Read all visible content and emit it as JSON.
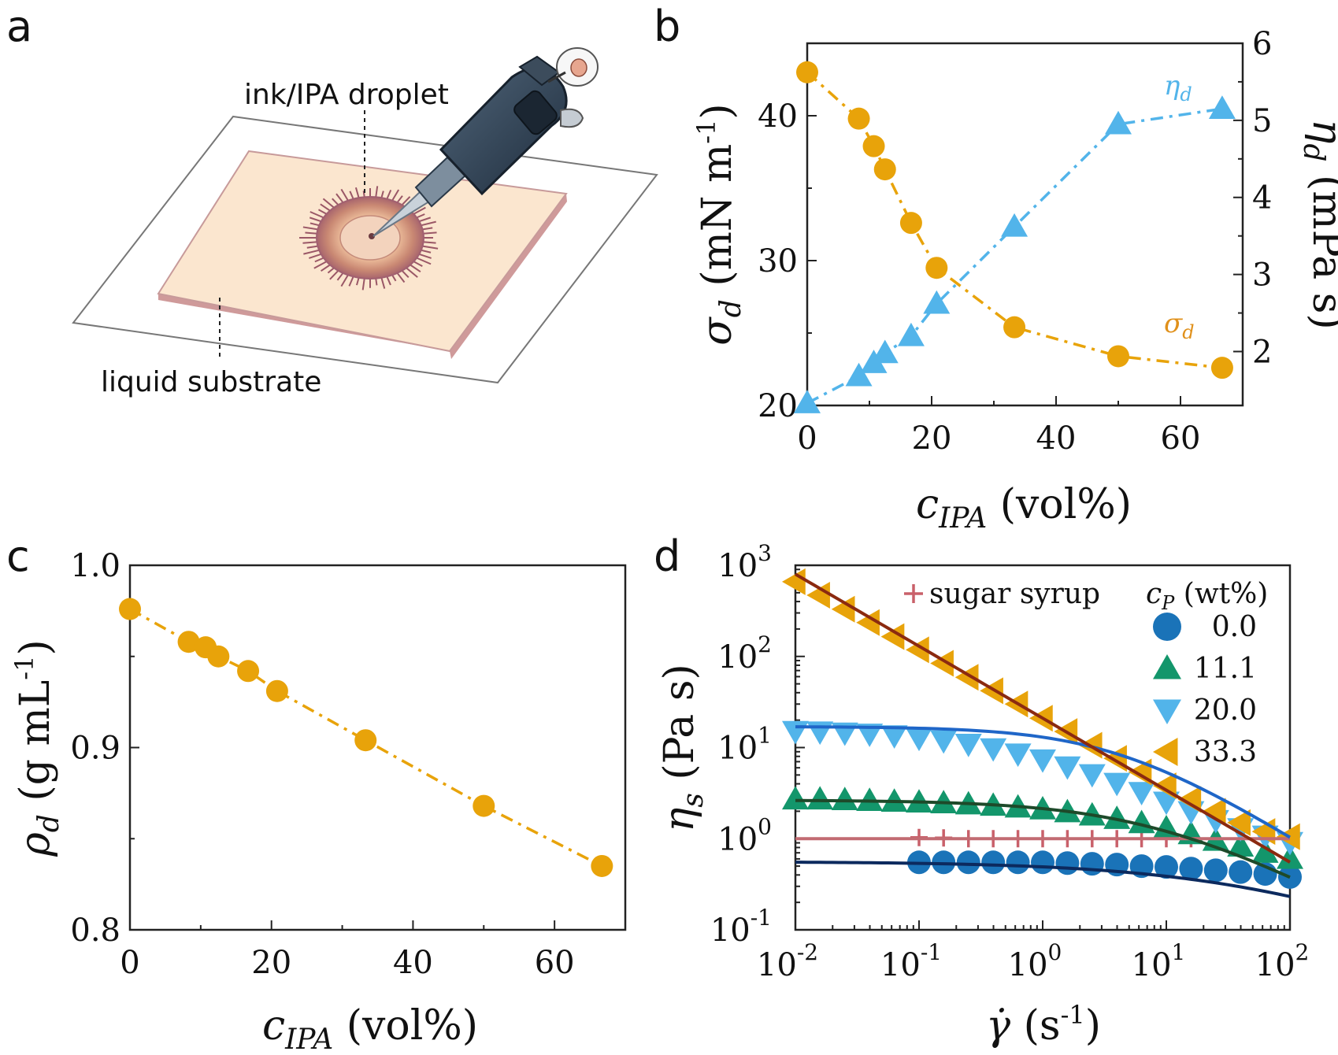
{
  "colors": {
    "orange": "#e8a30a",
    "blue_light": "#52b4ea",
    "blue_dark": "#1a73b8",
    "green": "#13966b",
    "pink": "#c9606a",
    "brown_line": "#8b2a10",
    "blue_line": "#1f66c8",
    "green_line": "#1e4a2a",
    "navy_line": "#0c2a5e",
    "pink_line": "#c26b72"
  },
  "panel_a": {
    "label": "a",
    "droplet_label": "ink/IPA droplet",
    "substrate_label": "liquid substrate"
  },
  "panel_b": {
    "label": "b"
  },
  "panel_c": {
    "label": "c"
  },
  "panel_d": {
    "label": "d"
  },
  "chart_data": [
    {
      "panel": "b",
      "type": "line",
      "xlabel": "c_IPA (vol%)",
      "xlabel_parts": {
        "sym": "c",
        "sub": "IPA",
        "unit": " (vol%)"
      },
      "ylabel_left": "σ_d (mN m-1)",
      "ylabel_left_parts": {
        "sym": "σ",
        "sub": "d",
        "unit": " (mN m",
        "sup": "-1",
        "close": ")"
      },
      "ylabel_right": "η_d (mPa s)",
      "ylabel_right_parts": {
        "sym": "η",
        "sub": "d",
        "unit": " (mPa s)"
      },
      "xlim": [
        0,
        70
      ],
      "ylim_left": [
        20,
        45
      ],
      "ylim_right": [
        1.3,
        6
      ],
      "xticks": [
        0,
        20,
        40,
        60
      ],
      "xtick_labels": [
        "0",
        "20",
        "40",
        "60"
      ],
      "yticks_left": [
        20,
        30,
        40
      ],
      "ytick_left_labels": [
        "20",
        "30",
        "40"
      ],
      "yticks_right": [
        2,
        3,
        4,
        5,
        6
      ],
      "ytick_right_labels": [
        "2",
        "3",
        "4",
        "5",
        "6"
      ],
      "series": [
        {
          "name": "σ_d",
          "label_sym": "σ",
          "label_sub": "d",
          "axis": "left",
          "marker": "circle",
          "x": [
            0,
            8.3,
            10.7,
            12.5,
            16.7,
            20.8,
            33.3,
            50,
            66.7
          ],
          "values": [
            43,
            39.8,
            37.9,
            36.3,
            32.6,
            29.5,
            25.4,
            23.4,
            22.6
          ]
        },
        {
          "name": "η_d",
          "label_sym": "η",
          "label_sub": "d",
          "axis": "right",
          "marker": "triangle-up",
          "x": [
            0,
            8.3,
            10.7,
            12.5,
            16.7,
            20.8,
            33.3,
            50,
            66.7
          ],
          "values": [
            1.33,
            1.68,
            1.85,
            1.98,
            2.2,
            2.62,
            3.62,
            4.95,
            5.15
          ]
        }
      ]
    },
    {
      "panel": "c",
      "type": "line",
      "xlabel": "c_IPA (vol%)",
      "xlabel_parts": {
        "sym": "c",
        "sub": "IPA",
        "unit": " (vol%)"
      },
      "ylabel": "ρ_d (g mL-1)",
      "ylabel_parts": {
        "sym": "ρ",
        "sub": "d",
        "unit": " (g mL",
        "sup": "-1",
        "close": ")"
      },
      "xlim": [
        0,
        70
      ],
      "ylim": [
        0.8,
        1.0
      ],
      "xticks": [
        0,
        20,
        40,
        60
      ],
      "xtick_labels": [
        "0",
        "20",
        "40",
        "60"
      ],
      "yticks": [
        0.8,
        0.9,
        1.0
      ],
      "ytick_labels": [
        "0.8",
        "0.9",
        "1.0"
      ],
      "series": [
        {
          "name": "ρ_d",
          "marker": "circle",
          "x": [
            0,
            8.3,
            10.7,
            12.5,
            16.7,
            20.8,
            33.3,
            50,
            66.7
          ],
          "values": [
            0.976,
            0.958,
            0.955,
            0.95,
            0.942,
            0.931,
            0.904,
            0.868,
            0.835
          ]
        }
      ]
    },
    {
      "panel": "d",
      "type": "scatter",
      "xscale": "log",
      "yscale": "log",
      "xlabel": "γ̇ (s-1)",
      "xlabel_parts": {
        "sym": "γ̇",
        "unit": " (s",
        "sup": "-1",
        "close": ")"
      },
      "ylabel": "η_s (Pa s)",
      "ylabel_parts": {
        "sym": "η",
        "sub": "s",
        "unit": " (Pa s)"
      },
      "xlim": [
        0.01,
        100
      ],
      "ylim": [
        0.1,
        1000
      ],
      "xticks": [
        0.01,
        0.1,
        1,
        10,
        100
      ],
      "xtick_labels": [
        [
          "10",
          "-2"
        ],
        [
          "10",
          "-1"
        ],
        [
          "10",
          "0"
        ],
        [
          "10",
          "1"
        ],
        [
          "10",
          "2"
        ]
      ],
      "yticks": [
        0.1,
        1,
        10,
        100,
        1000
      ],
      "ytick_labels": [
        [
          "10",
          "-1"
        ],
        [
          "10",
          "0"
        ],
        [
          "10",
          "1"
        ],
        [
          "10",
          "2"
        ],
        [
          "10",
          "3"
        ]
      ],
      "legend_title": "(wt%)",
      "legend_title_parts": {
        "sym": "c",
        "sub": "P",
        "unit": " (wt%)"
      },
      "sugar_label": "sugar syrup",
      "series": [
        {
          "name": "sugar syrup",
          "marker": "plus",
          "color_key": "pink",
          "line_key": "pink_line",
          "x": [
            0.1,
            0.158,
            0.251,
            0.398,
            0.631,
            1,
            1.585,
            2.512,
            3.981,
            6.31,
            10,
            15.85,
            25.12,
            39.81,
            63.1,
            100
          ],
          "values": [
            1.03,
            1.02,
            1.0,
            1.0,
            1.0,
            1.0,
            1.0,
            1.0,
            1.0,
            1.0,
            1.0,
            1.0,
            1.0,
            1.0,
            1.0,
            1.0
          ],
          "fit": {
            "type": "flat",
            "value": 1.0
          }
        },
        {
          "name": "0.0",
          "marker": "circle",
          "color_key": "blue_dark",
          "line_key": "navy_line",
          "x": [
            0.1,
            0.158,
            0.251,
            0.398,
            0.631,
            1,
            1.585,
            2.512,
            3.981,
            6.31,
            10,
            15.85,
            25.12,
            39.81,
            63.1,
            100
          ],
          "values": [
            0.55,
            0.55,
            0.55,
            0.55,
            0.55,
            0.55,
            0.54,
            0.53,
            0.52,
            0.5,
            0.49,
            0.47,
            0.45,
            0.43,
            0.41,
            0.38
          ],
          "fit": {
            "type": "cross",
            "eta0": 0.56,
            "lambda": 0.02,
            "n": 0.5
          }
        },
        {
          "name": "11.1",
          "marker": "triangle-up",
          "color_key": "green",
          "line_key": "green_line",
          "x": [
            0.01,
            0.0158,
            0.0251,
            0.0398,
            0.0631,
            0.1,
            0.158,
            0.251,
            0.398,
            0.631,
            1,
            1.585,
            2.512,
            3.981,
            6.31,
            10,
            15.85,
            25.12,
            39.81,
            63.1,
            100
          ],
          "values": [
            2.7,
            2.7,
            2.65,
            2.6,
            2.55,
            2.5,
            2.45,
            2.38,
            2.3,
            2.2,
            2.1,
            1.95,
            1.8,
            1.65,
            1.48,
            1.3,
            1.12,
            0.95,
            0.82,
            0.7,
            0.6
          ],
          "fit": {
            "type": "cross",
            "eta0": 2.65,
            "lambda": 0.13,
            "n": 0.7
          }
        },
        {
          "name": "20.0",
          "marker": "triangle-down",
          "color_key": "blue_light",
          "line_key": "blue_line",
          "x": [
            0.01,
            0.0158,
            0.0251,
            0.0398,
            0.0631,
            0.1,
            0.158,
            0.251,
            0.398,
            0.631,
            1,
            1.585,
            2.512,
            3.981,
            6.31,
            10,
            15.85,
            25.12,
            39.81,
            63.1,
            100
          ],
          "values": [
            15.2,
            15,
            14.6,
            14.2,
            13.6,
            12.8,
            12,
            11,
            9.8,
            8.6,
            7.4,
            6.2,
            5.1,
            4.1,
            3.25,
            2.55,
            2.0,
            1.6,
            1.3,
            1.08,
            0.92
          ],
          "fit": {
            "type": "cross",
            "eta0": 17,
            "lambda": 0.25,
            "n": 0.85
          }
        },
        {
          "name": "33.3",
          "marker": "triangle-left",
          "color_key": "orange",
          "line_key": "brown_line",
          "x": [
            0.01,
            0.0158,
            0.0251,
            0.0398,
            0.0631,
            0.1,
            0.158,
            0.251,
            0.398,
            0.631,
            1,
            1.585,
            2.512,
            3.981,
            6.31,
            10,
            15.85,
            25.12,
            39.81,
            63.1,
            100
          ],
          "values": [
            660,
            470,
            330,
            235,
            165,
            118,
            84,
            59,
            42,
            30,
            21,
            15,
            10.6,
            7.6,
            5.4,
            3.8,
            2.7,
            2.0,
            1.5,
            1.2,
            1.05
          ],
          "fit": {
            "type": "power",
            "k": 21,
            "n": 0.26
          }
        }
      ]
    }
  ]
}
